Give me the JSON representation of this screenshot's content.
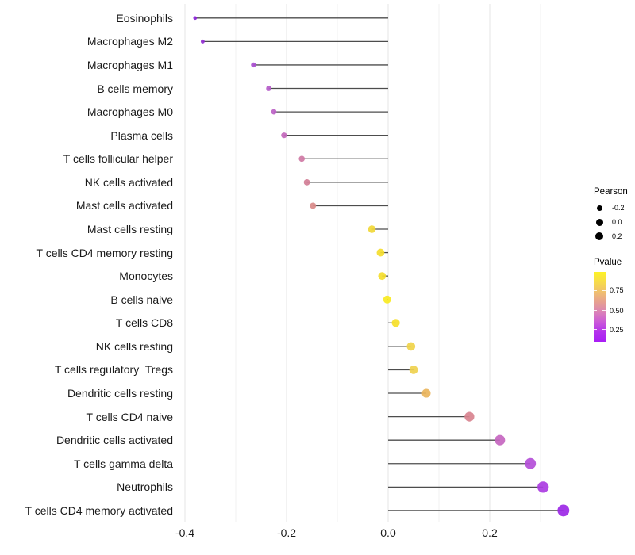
{
  "chart_data": {
    "type": "lollipop",
    "orientation": "horizontal",
    "title": "",
    "xlabel": "",
    "ylabel": "",
    "x_tick_labels": [
      "-0.4",
      "-0.2",
      "0.0",
      "0.2"
    ],
    "x_tick_values": [
      -0.4,
      -0.2,
      0.0,
      0.2
    ],
    "x_minor_tick_values": [
      -0.3,
      -0.1,
      0.1,
      0.3
    ],
    "xlim": [
      -0.42,
      0.38
    ],
    "grid": "vertical-only",
    "legend_position": "right",
    "points": [
      {
        "label": "Eosinophils",
        "pearson": -0.38,
        "color": "#8b24d8"
      },
      {
        "label": "Macrophages M2",
        "pearson": -0.365,
        "color": "#9430d4"
      },
      {
        "label": "Macrophages M1",
        "pearson": -0.265,
        "color": "#a94fd0"
      },
      {
        "label": "B cells memory",
        "pearson": -0.235,
        "color": "#b55cca"
      },
      {
        "label": "Macrophages M0",
        "pearson": -0.225,
        "color": "#bc62c6"
      },
      {
        "label": "Plasma cells",
        "pearson": -0.205,
        "color": "#c368bc"
      },
      {
        "label": "T cells follicular helper",
        "pearson": -0.17,
        "color": "#cf78a4"
      },
      {
        "label": "NK cells activated",
        "pearson": -0.16,
        "color": "#d37e96"
      },
      {
        "label": "Mast cells activated",
        "pearson": -0.148,
        "color": "#d98a89"
      },
      {
        "label": "Mast cells resting",
        "pearson": -0.032,
        "color": "#f1d838"
      },
      {
        "label": "T cells CD4 memory resting",
        "pearson": -0.015,
        "color": "#f4dd2e"
      },
      {
        "label": "Monocytes",
        "pearson": -0.012,
        "color": "#f4dd2e"
      },
      {
        "label": "B cells naive",
        "pearson": -0.002,
        "color": "#f8ea22"
      },
      {
        "label": "T cells CD8",
        "pearson": 0.015,
        "color": "#f6e029"
      },
      {
        "label": "NK cells resting",
        "pearson": 0.045,
        "color": "#f0d44a"
      },
      {
        "label": "T cells regulatory  Tregs",
        "pearson": 0.05,
        "color": "#efd14f"
      },
      {
        "label": "Dendritic cells resting",
        "pearson": 0.075,
        "color": "#eab55c"
      },
      {
        "label": "T cells CD4 naive",
        "pearson": 0.16,
        "color": "#d8838f"
      },
      {
        "label": "Dendritic cells activated",
        "pearson": 0.22,
        "color": "#c666c0"
      },
      {
        "label": "T cells gamma delta",
        "pearson": 0.28,
        "color": "#b44fd8"
      },
      {
        "label": "Neutrophils",
        "pearson": 0.305,
        "color": "#ab3ce2"
      },
      {
        "label": "T cells CD4 memory activated",
        "pearson": 0.345,
        "color": "#9c28e6"
      }
    ],
    "legend": {
      "size": {
        "title": "Pearson",
        "entries": [
          {
            "label": "-0.2"
          },
          {
            "label": "0.0"
          },
          {
            "label": "0.2"
          }
        ],
        "dot_color": "#000000"
      },
      "color": {
        "title": "Pvalue",
        "tick_labels": [
          "0.75",
          "0.50",
          "0.25"
        ],
        "gradient_top_to_bottom": [
          "#fdf226",
          "#f7dc4a",
          "#f0c06e",
          "#e7a090",
          "#db84b6",
          "#cb5ad8",
          "#b433ec",
          "#a91ef5"
        ]
      }
    },
    "style_colors": {
      "stem": "#4d4d4d",
      "grid_major": "#e5e5e5",
      "grid_minor": "#f2f2f2",
      "axis_text": "#1a1a1a",
      "background": "#ffffff"
    }
  }
}
